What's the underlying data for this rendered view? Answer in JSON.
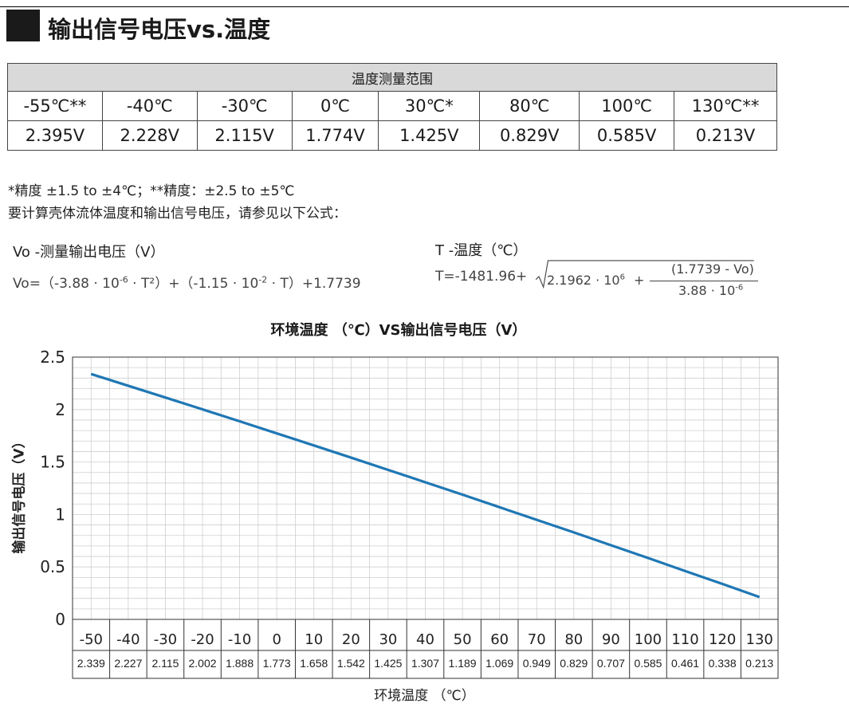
{
  "header": {
    "title": "输出信号电压vs.温度"
  },
  "range_table": {
    "caption": "温度测量范围",
    "temps": [
      "-55℃**",
      "-40℃",
      "-30℃",
      "0℃",
      "30℃*",
      "80℃",
      "100℃",
      "130℃**"
    ],
    "volts": [
      "2.395V",
      "2.228V",
      "2.115V",
      "1.774V",
      "1.425V",
      "0.829V",
      "0.585V",
      "0.213V"
    ]
  },
  "notes": {
    "accuracy": "*精度 ±1.5 to ±4℃；**精度：±2.5 to ±5℃",
    "instruction": "要计算壳体流体温度和输出信号电压，请参见以下公式："
  },
  "formula_v": {
    "label": "Vo -测量输出电压（V）",
    "lhs": "Vo=",
    "part1": "（-3.88 · 10",
    "exp1": "-6",
    "part2": " · T²）+（-1.15 · 10",
    "exp2": "-2",
    "part3": " · T）+1.7739"
  },
  "formula_t": {
    "label": "T -温度（℃）",
    "lhs": "T=-1481.96+",
    "radicand_a": "2.1962 · 10",
    "radicand_a_exp": "6",
    "plus": "+",
    "numerator": "(1.7739 - Vo)",
    "denominator": "3.88 · 10",
    "denominator_exp": "-6"
  },
  "chart_data": {
    "type": "line",
    "title": "环境温度 （℃）VS输出信号电压（V）",
    "xlabel": "环境温度 （℃）",
    "ylabel": "输出信号电压（V）",
    "x": [
      -50,
      -40,
      -30,
      -20,
      -10,
      0,
      10,
      20,
      30,
      40,
      50,
      60,
      70,
      80,
      90,
      100,
      110,
      120,
      130
    ],
    "values": [
      2.339,
      2.227,
      2.115,
      2.002,
      1.888,
      1.773,
      1.658,
      1.542,
      1.425,
      1.307,
      1.189,
      1.069,
      0.949,
      0.829,
      0.707,
      0.585,
      0.461,
      0.338,
      0.213
    ],
    "x_tick_labels": [
      "-50",
      "-40",
      "-30",
      "-20",
      "-10",
      "0",
      "10",
      "20",
      "30",
      "40",
      "50",
      "60",
      "70",
      "80",
      "90",
      "100",
      "110",
      "120",
      "130"
    ],
    "value_labels": [
      "2.339",
      "2.227",
      "2.115",
      "2.002",
      "1.888",
      "1.773",
      "1.658",
      "1.542",
      "1.425",
      "1.307",
      "1.189",
      "1.069",
      "0.949",
      "0.829",
      "0.707",
      "0.585",
      "0.461",
      "0.338",
      "0.213"
    ],
    "y_ticks": [
      "0",
      "0.5",
      "1",
      "1.5",
      "2",
      "2.5"
    ],
    "ylim": [
      0,
      2.5
    ],
    "grid": true,
    "line_color": "#1f77b4",
    "grid_color": "#cfcfcf"
  }
}
